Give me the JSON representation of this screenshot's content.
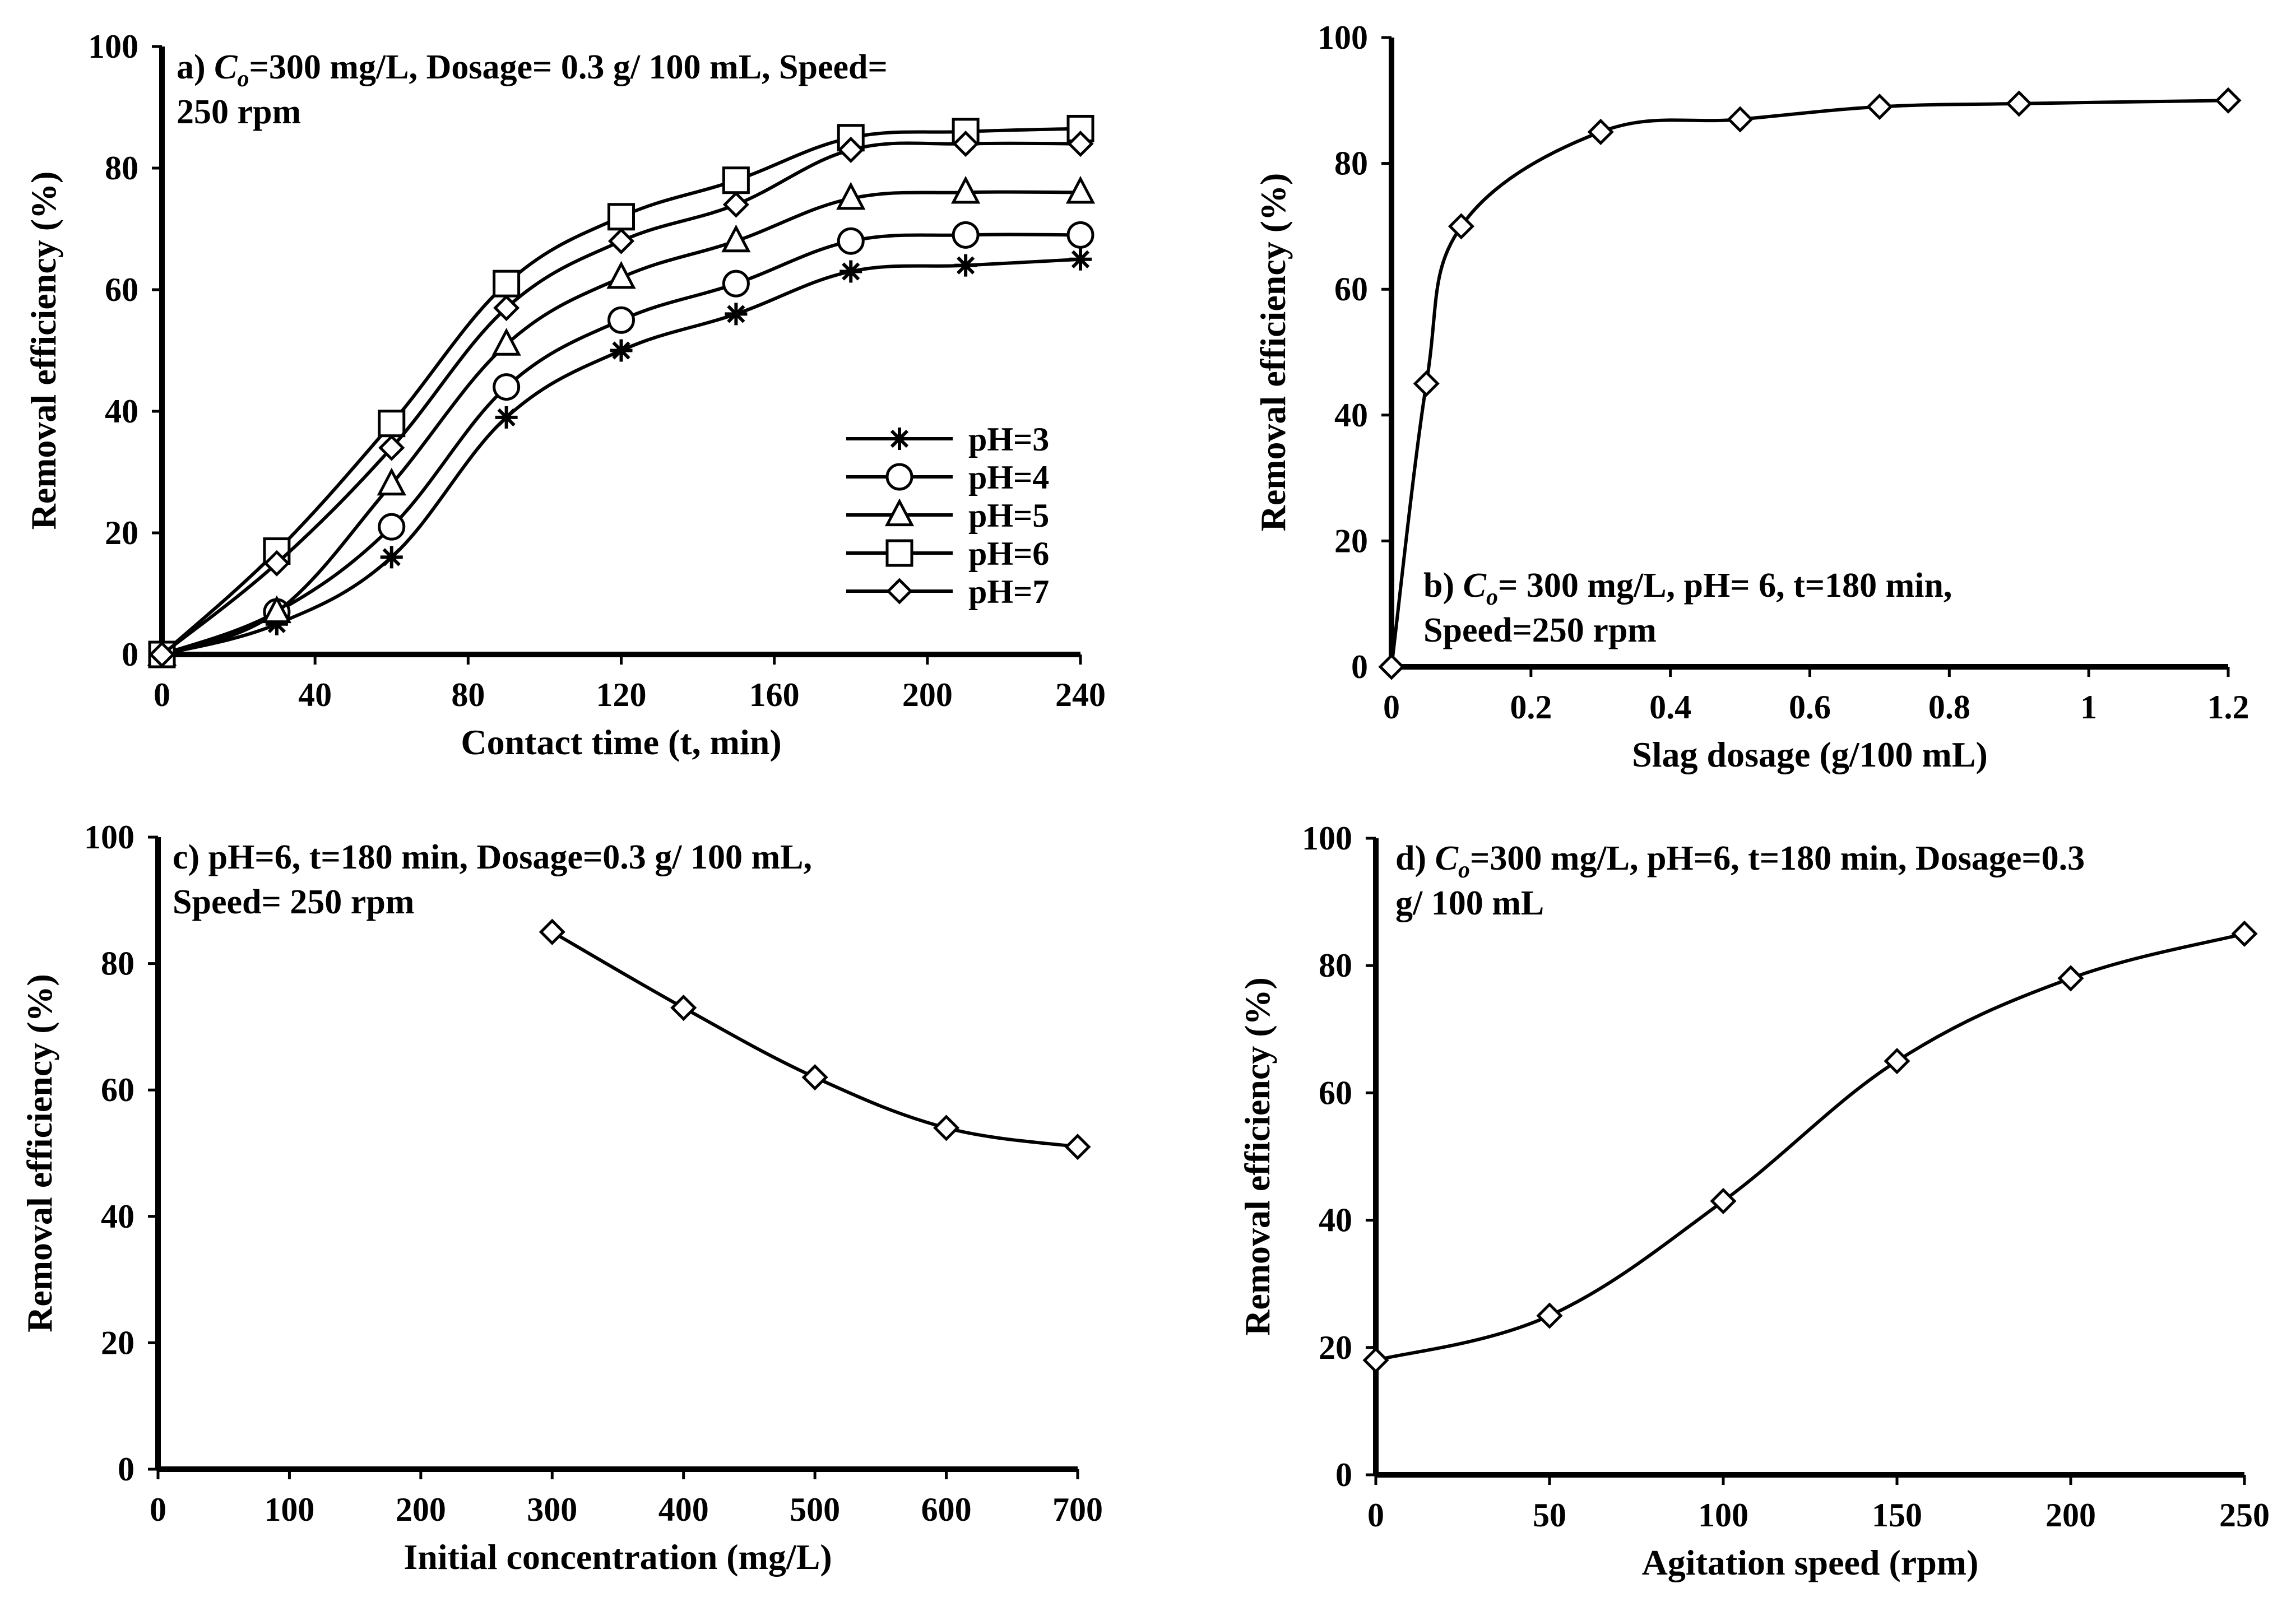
{
  "chart_data": [
    {
      "id": "a",
      "type": "line",
      "annotation": {
        "line1_prefix": "a) ",
        "line1_italic": "C",
        "line1_sub": "o",
        "line1_rest": "=300 mg/L, Dosage= 0.3 g/ 100 mL, Speed=",
        "line2": "250 rpm"
      },
      "xlabel": "Contact time (t, min)",
      "ylabel": "Removal efficiency (%)",
      "xlim": [
        0,
        240
      ],
      "ylim": [
        0,
        100
      ],
      "xticks": [
        "0",
        "40",
        "80",
        "120",
        "160",
        "200",
        "240"
      ],
      "yticks": [
        "0",
        "20",
        "40",
        "60",
        "80",
        "100"
      ],
      "x": [
        0,
        30,
        60,
        90,
        120,
        150,
        180,
        210,
        240
      ],
      "legend_position": "center-right",
      "series": [
        {
          "name": "pH=3",
          "marker": "star",
          "values": [
            0,
            5,
            16,
            39,
            50,
            56,
            63,
            64,
            65
          ]
        },
        {
          "name": "pH=4",
          "marker": "circle",
          "values": [
            0,
            7,
            21,
            44,
            55,
            61,
            68,
            69,
            69
          ]
        },
        {
          "name": "pH=5",
          "marker": "triangle",
          "values": [
            0,
            7,
            28,
            51,
            62,
            68,
            75,
            76,
            76
          ]
        },
        {
          "name": "pH=6",
          "marker": "square",
          "values": [
            0,
            17,
            38,
            61,
            72,
            78,
            85,
            86,
            86.5
          ]
        },
        {
          "name": "pH=7",
          "marker": "diamond",
          "values": [
            0,
            15,
            34,
            57,
            68,
            74,
            83,
            84,
            84
          ]
        }
      ]
    },
    {
      "id": "b",
      "type": "line",
      "annotation": {
        "line1_prefix": "b) ",
        "line1_italic": "C",
        "line1_sub": "o",
        "line1_rest": "= 300 mg/L, pH= 6, t=180 min,",
        "line2": "Speed=250 rpm"
      },
      "xlabel": "Slag dosage (g/100 mL)",
      "ylabel": "Removal efficiency (%)",
      "xlim": [
        0,
        1.2
      ],
      "ylim": [
        0,
        100
      ],
      "xticks": [
        "0",
        "0.2",
        "0.4",
        "0.6",
        "0.8",
        "1",
        "1.2"
      ],
      "yticks": [
        "0",
        "20",
        "40",
        "60",
        "80",
        "100"
      ],
      "x": [
        0,
        0.05,
        0.1,
        0.3,
        0.5,
        0.7,
        0.9,
        1.2
      ],
      "series": [
        {
          "marker": "diamond",
          "values": [
            0,
            45,
            70,
            85,
            87,
            89,
            89.5,
            90
          ]
        }
      ]
    },
    {
      "id": "c",
      "type": "line",
      "annotation": {
        "line1_prefix": "c) pH=6, t=180 min, Dosage=0.3 g/ 100 mL,",
        "line1_italic": "",
        "line1_sub": "",
        "line1_rest": "",
        "line2": "Speed= 250 rpm"
      },
      "xlabel": "Initial concentration (mg/L)",
      "ylabel": "Removal efficiency (%)",
      "xlim": [
        0,
        700
      ],
      "ylim": [
        0,
        100
      ],
      "xticks": [
        "0",
        "100",
        "200",
        "300",
        "400",
        "500",
        "600",
        "700"
      ],
      "yticks": [
        "0",
        "20",
        "40",
        "60",
        "80",
        "100"
      ],
      "x": [
        300,
        400,
        500,
        600,
        700
      ],
      "series": [
        {
          "marker": "diamond",
          "values": [
            85,
            73,
            62,
            54,
            51
          ]
        }
      ]
    },
    {
      "id": "d",
      "type": "line",
      "annotation": {
        "line1_prefix": "d) ",
        "line1_italic": "C",
        "line1_sub": "o",
        "line1_rest": "=300 mg/L, pH=6, t=180 min, Dosage=0.3",
        "line2": "g/ 100 mL"
      },
      "xlabel": "Agitation speed (rpm)",
      "ylabel": "Removal efficiency (%)",
      "xlim": [
        0,
        250
      ],
      "ylim": [
        0,
        100
      ],
      "xticks": [
        "0",
        "50",
        "100",
        "150",
        "200",
        "250"
      ],
      "yticks": [
        "0",
        "20",
        "40",
        "60",
        "80",
        "100"
      ],
      "x": [
        0,
        50,
        100,
        150,
        200,
        250
      ],
      "series": [
        {
          "marker": "diamond",
          "values": [
            18,
            25,
            43,
            65,
            78,
            85
          ]
        }
      ]
    }
  ]
}
